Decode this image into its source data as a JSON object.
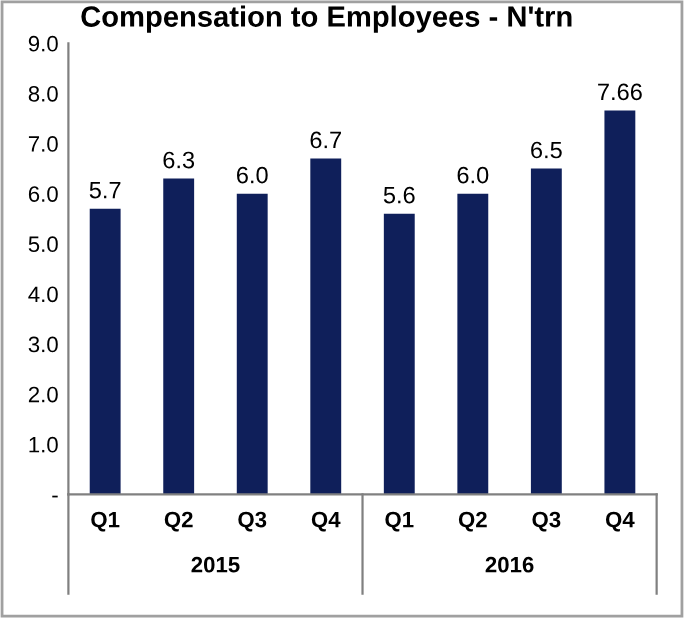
{
  "chart_data": {
    "type": "bar",
    "title": "Compensation to Employees - N'trn",
    "categories": [
      "Q1",
      "Q2",
      "Q3",
      "Q4",
      "Q1",
      "Q2",
      "Q3",
      "Q4"
    ],
    "values": [
      5.7,
      6.3,
      6.0,
      6.7,
      5.6,
      6.0,
      6.5,
      7.66
    ],
    "value_labels": [
      "5.7",
      "6.3",
      "6.0",
      "6.7",
      "5.6",
      "6.0",
      "6.5",
      "7.66"
    ],
    "color": "#0f1f5a",
    "ylim": [
      0,
      9
    ],
    "yticks": [
      {
        "value": 0,
        "label": "-"
      },
      {
        "value": 1,
        "label": "1.0"
      },
      {
        "value": 2,
        "label": "2.0"
      },
      {
        "value": 3,
        "label": "3.0"
      },
      {
        "value": 4,
        "label": "4.0"
      },
      {
        "value": 5,
        "label": "5.0"
      },
      {
        "value": 6,
        "label": "6.0"
      },
      {
        "value": 7,
        "label": "7.0"
      },
      {
        "value": 8,
        "label": "8.0"
      },
      {
        "value": 9,
        "label": "9.0"
      }
    ],
    "annotations": [
      "2015",
      "2016"
    ],
    "grid": false
  }
}
